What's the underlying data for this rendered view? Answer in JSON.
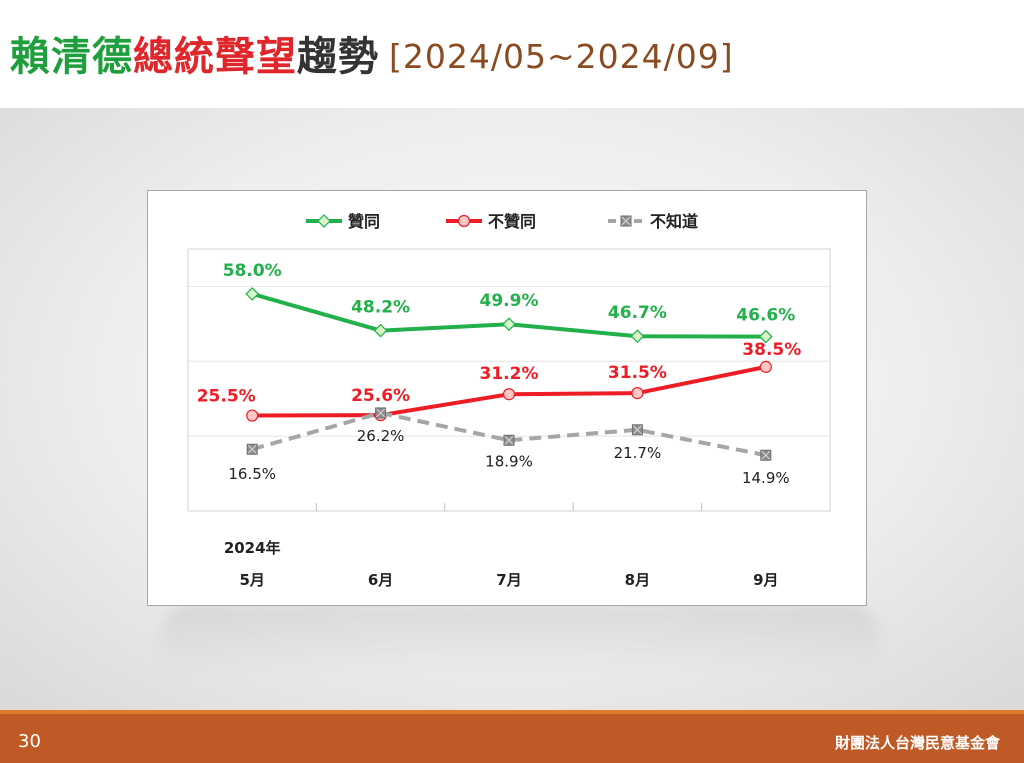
{
  "title": {
    "parts": [
      {
        "text": "賴清德",
        "color": "#1e9e3c"
      },
      {
        "text": "總統聲望",
        "color": "#e0262a"
      },
      {
        "text": "趨勢",
        "color": "#333333"
      }
    ],
    "period": "[2024/05~2024/09]",
    "period_color": "#8b4a20"
  },
  "footer": {
    "page_number": "30",
    "organization": "財團法人台灣民意基金會"
  },
  "chart_data": {
    "type": "line",
    "year_label": "2024年",
    "categories": [
      "5月",
      "6月",
      "7月",
      "8月",
      "9月"
    ],
    "ylim": [
      0,
      70
    ],
    "grid": "horizontal",
    "legend_position": "top",
    "series": [
      {
        "name": "贊同",
        "values": [
          58.0,
          48.2,
          49.9,
          46.7,
          46.6
        ],
        "labels": [
          "58.0%",
          "48.2%",
          "49.9%",
          "46.7%",
          "46.6%"
        ],
        "color": "#22b04b",
        "marker": "diamond",
        "dashed": false,
        "bold_labels": true
      },
      {
        "name": "不贊同",
        "values": [
          25.5,
          25.6,
          31.2,
          31.5,
          38.5
        ],
        "labels": [
          "25.5%",
          "25.6%",
          "31.2%",
          "31.5%",
          "38.5%"
        ],
        "color": "#ee1c25",
        "marker": "circle",
        "dashed": false,
        "bold_labels": true
      },
      {
        "name": "不知道",
        "values": [
          16.5,
          26.2,
          18.9,
          21.7,
          14.9
        ],
        "labels": [
          "16.5%",
          "26.2%",
          "18.9%",
          "21.7%",
          "14.9%"
        ],
        "color": "#a6a6a6",
        "marker": "square-x",
        "dashed": true,
        "bold_labels": false
      }
    ]
  }
}
